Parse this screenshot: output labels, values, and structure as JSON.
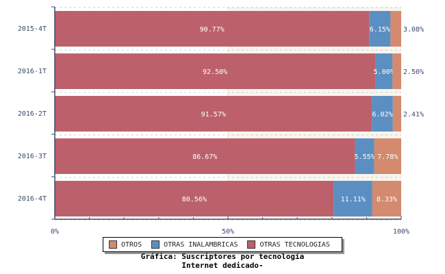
{
  "chart_data": {
    "type": "bar",
    "orientation": "horizontal",
    "stacked": true,
    "title": "Gráfica: Suscriptores por tecnología",
    "subtitle": "Internet dedicado-",
    "categories": [
      "2015-4T",
      "2016-1T",
      "2016-2T",
      "2016-3T",
      "2016-4T"
    ],
    "series": [
      {
        "name": "OTRAS TECNOLOGIAS",
        "color": "#bc616b",
        "values": [
          90.77,
          92.5,
          91.57,
          86.67,
          80.56
        ]
      },
      {
        "name": "OTRAS INALAMBRICAS",
        "color": "#5b8fc2",
        "values": [
          6.15,
          5.0,
          6.02,
          5.55,
          11.11
        ]
      },
      {
        "name": "OTROS",
        "color": "#d48a6e",
        "values": [
          3.08,
          2.5,
          2.41,
          7.78,
          8.33
        ]
      }
    ],
    "xticks": [
      "0%",
      "50%",
      "100%"
    ],
    "xlim": [
      0,
      100
    ],
    "grid": true,
    "legend_position": "bottom",
    "legend_order": [
      "OTROS",
      "OTRAS INALAMBRICAS",
      "OTRAS TECNOLOGIAS"
    ]
  }
}
